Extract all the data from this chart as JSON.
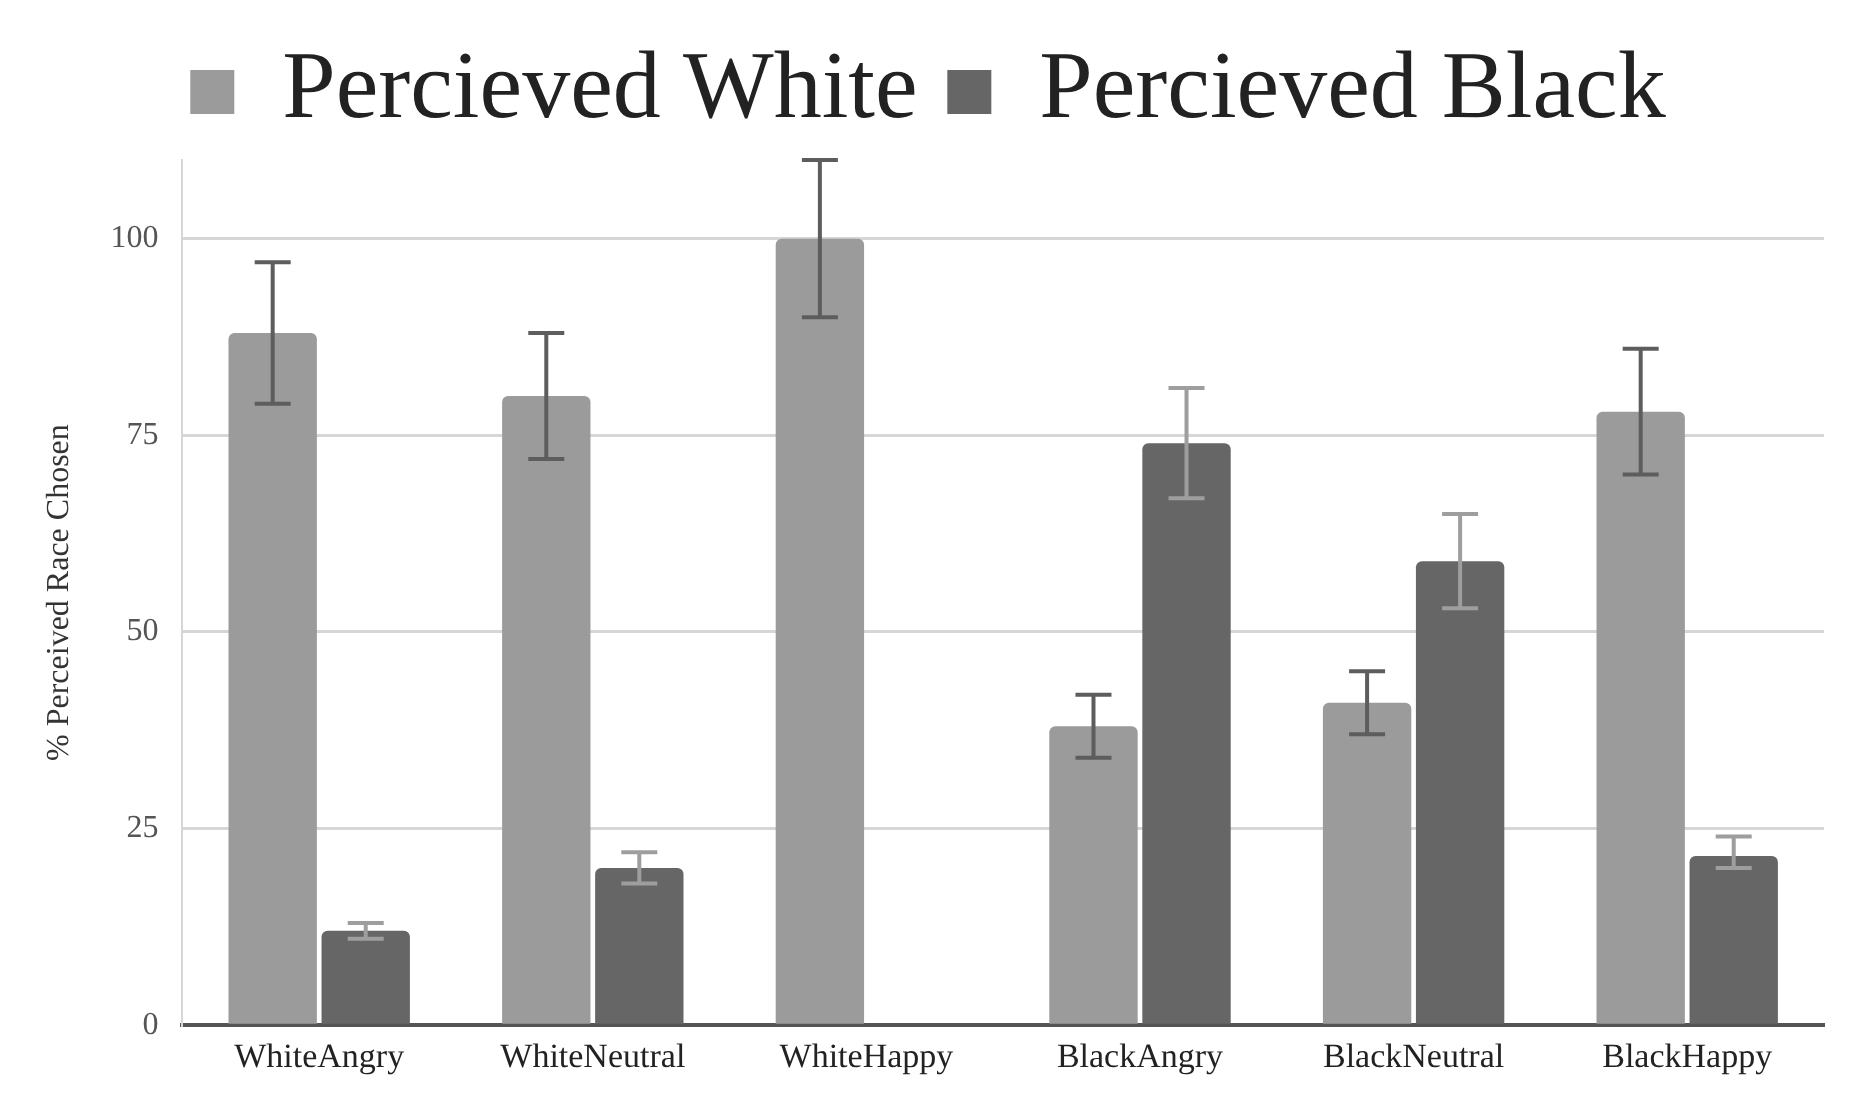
{
  "chart_data": {
    "type": "bar",
    "categories": [
      "WhiteAngry",
      "WhiteNeutral",
      "WhiteHappy",
      "BlackAngry",
      "BlackNeutral",
      "BlackHappy"
    ],
    "series": [
      {
        "name": "Percieved White",
        "color": "#9b9b9b",
        "values": [
          88,
          80,
          100,
          38,
          41,
          78
        ],
        "errors": [
          [
            79,
            97
          ],
          [
            72,
            88
          ],
          [
            90,
            110
          ],
          [
            34,
            42
          ],
          [
            37,
            45
          ],
          [
            70,
            86
          ]
        ]
      },
      {
        "name": "Percieved Black",
        "color": "#666666",
        "values": [
          12,
          20,
          0,
          74,
          59,
          21.5
        ],
        "errors": [
          [
            11,
            13
          ],
          [
            18,
            22
          ],
          null,
          [
            67,
            81
          ],
          [
            53,
            65
          ],
          [
            20,
            24
          ]
        ]
      }
    ],
    "ylabel": "% Perceived Race Chosen",
    "ylim": [
      0,
      110
    ],
    "yticks": [
      0,
      25,
      50,
      75,
      100
    ],
    "grid": "y",
    "legend": "top"
  }
}
